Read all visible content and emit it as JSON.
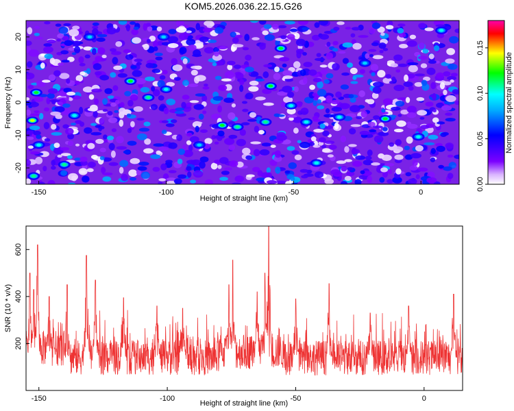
{
  "title": "KOM5.2026.036.22.15.G26",
  "chart_data": [
    {
      "type": "heatmap",
      "title": "KOM5.2026.036.22.15.G26",
      "xlabel": "Height of straight line (km)",
      "ylabel": "Frequency (Hz)",
      "xlim": [
        -155,
        15
      ],
      "ylim": [
        -25,
        25
      ],
      "xticks": [
        -150,
        -100,
        -50,
        0
      ],
      "yticks": [
        -20,
        -10,
        0,
        10,
        20
      ],
      "colorbar": {
        "label": "Normalized spectral amplitude",
        "range": [
          0.0,
          0.18
        ],
        "ticks": [
          "0.00",
          "0.05",
          "0.10",
          "0.15"
        ],
        "colors": [
          "#ffffff",
          "#7b00ff",
          "#0000ff",
          "#00ffff",
          "#00ff00",
          "#ffff00",
          "#ff0000",
          "#ff00aa"
        ]
      },
      "hotspots": [
        {
          "x": -152.5,
          "y": -5.5,
          "v": 0.14
        },
        {
          "x": -151,
          "y": 3,
          "v": 0.12
        },
        {
          "x": -152,
          "y": -22.5,
          "v": 0.11
        },
        {
          "x": -114,
          "y": 6.5,
          "v": 0.12
        },
        {
          "x": -107,
          "y": 1.5,
          "v": 0.11
        },
        {
          "x": -100,
          "y": 4,
          "v": 0.1
        },
        {
          "x": -78,
          "y": -7,
          "v": 0.12
        },
        {
          "x": -72,
          "y": -7.5,
          "v": 0.11
        },
        {
          "x": -61,
          "y": -6,
          "v": 0.11
        },
        {
          "x": -59,
          "y": 5,
          "v": 0.12
        },
        {
          "x": -51,
          "y": -1,
          "v": 0.1
        },
        {
          "x": -55,
          "y": 16.5,
          "v": 0.12
        },
        {
          "x": -45,
          "y": -6,
          "v": 0.1
        },
        {
          "x": -41,
          "y": -18.5,
          "v": 0.1
        },
        {
          "x": -32,
          "y": -4.5,
          "v": 0.1
        },
        {
          "x": -14,
          "y": -5,
          "v": 0.12
        },
        {
          "x": -1,
          "y": -10.5,
          "v": 0.1
        },
        {
          "x": -136,
          "y": -4,
          "v": 0.1
        },
        {
          "x": -150,
          "y": -13,
          "v": 0.1
        },
        {
          "x": -130,
          "y": 20,
          "v": 0.09
        },
        {
          "x": -140,
          "y": -19,
          "v": 0.11
        },
        {
          "x": -87,
          "y": -13,
          "v": 0.09
        },
        {
          "x": 8,
          "y": 22,
          "v": 0.1
        },
        {
          "x": -101,
          "y": 20,
          "v": 0.09
        },
        {
          "x": -22,
          "y": 12,
          "v": 0.09
        }
      ]
    },
    {
      "type": "line",
      "title": "",
      "xlabel": "Height of straight line (km)",
      "ylabel": "SNR (10 * v/v)",
      "xlim": [
        -155,
        15
      ],
      "ylim": [
        0,
        700
      ],
      "xticks": [
        -150,
        -100,
        -50,
        0
      ],
      "yticks": [
        200,
        400,
        600
      ],
      "series_color": "#ee3333",
      "baseline_mean": 140,
      "peaks": [
        {
          "x": -153.5,
          "y": 500
        },
        {
          "x": -150.5,
          "y": 620
        },
        {
          "x": -152,
          "y": 430
        },
        {
          "x": -146,
          "y": 400
        },
        {
          "x": -139,
          "y": 450
        },
        {
          "x": -131.5,
          "y": 575
        },
        {
          "x": -128,
          "y": 470
        },
        {
          "x": -117,
          "y": 395
        },
        {
          "x": -104,
          "y": 360
        },
        {
          "x": -94,
          "y": 350
        },
        {
          "x": -76,
          "y": 450
        },
        {
          "x": -74.5,
          "y": 555
        },
        {
          "x": -65,
          "y": 420
        },
        {
          "x": -60.5,
          "y": 700
        },
        {
          "x": -62,
          "y": 500
        },
        {
          "x": -50,
          "y": 390
        },
        {
          "x": -37,
          "y": 455
        },
        {
          "x": -21,
          "y": 330
        },
        {
          "x": -6,
          "y": 360
        },
        {
          "x": 11.5,
          "y": 410
        }
      ]
    }
  ]
}
